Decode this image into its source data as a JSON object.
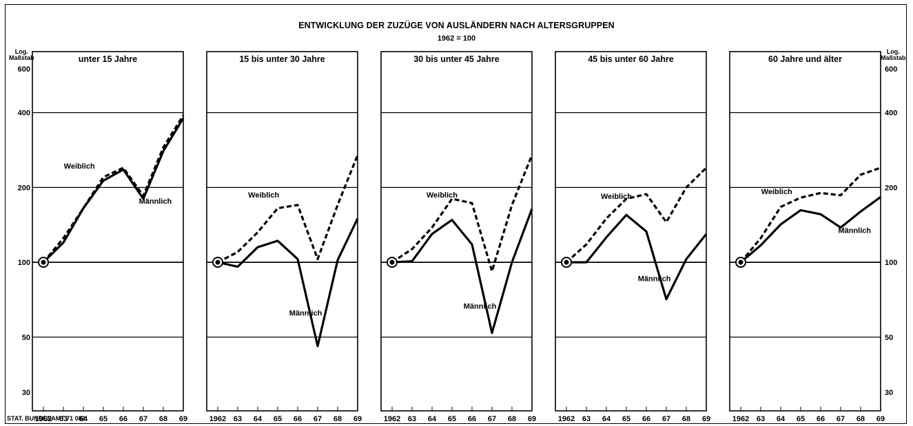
{
  "title": "ENTWICKLUNG DER ZUZÜGE VON AUSLÄNDERN NACH ALTERSGRUPPEN",
  "subtitle": "1962 = 100",
  "source": "STAT. BUNDESAMT 71 082",
  "scale_label_left": [
    "Log.",
    "Maßstab"
  ],
  "scale_label_right": [
    "Log.",
    "Maßstab"
  ],
  "chart_data": [
    {
      "type": "line",
      "title": "unter 15 Jahre",
      "x": [
        "1962",
        "63",
        "64",
        "65",
        "66",
        "67",
        "68",
        "69"
      ],
      "y_scale": "log",
      "ylim": [
        30,
        600
      ],
      "y_ticks": [
        30,
        50,
        100,
        200,
        400,
        600
      ],
      "series": [
        {
          "name": "Weiblich",
          "style": "dashed",
          "values": [
            100,
            125,
            165,
            220,
            240,
            185,
            290,
            390
          ],
          "label_at": {
            "x_index": 1.8,
            "value": 238
          }
        },
        {
          "name": "Männlich",
          "style": "solid",
          "values": [
            100,
            120,
            165,
            213,
            236,
            180,
            280,
            380
          ],
          "label_at": {
            "x_index": 5.6,
            "value": 172
          }
        }
      ]
    },
    {
      "type": "line",
      "title": "15 bis unter 30 Jahre",
      "x": [
        "1962",
        "63",
        "64",
        "65",
        "66",
        "67",
        "68",
        "69"
      ],
      "y_scale": "log",
      "ylim": [
        30,
        600
      ],
      "y_ticks": [
        30,
        50,
        100,
        200,
        400,
        600
      ],
      "series": [
        {
          "name": "Weiblich",
          "style": "dashed",
          "values": [
            100,
            110,
            132,
            165,
            170,
            103,
            170,
            270
          ],
          "label_at": {
            "x_index": 2.3,
            "value": 182
          }
        },
        {
          "name": "Männlich",
          "style": "solid",
          "values": [
            100,
            96,
            115,
            122,
            103,
            46,
            102,
            150
          ],
          "label_at": {
            "x_index": 4.4,
            "value": 61
          }
        }
      ]
    },
    {
      "type": "line",
      "title": "30 bis unter 45 Jahre",
      "x": [
        "1962",
        "63",
        "64",
        "65",
        "66",
        "67",
        "68",
        "69"
      ],
      "y_scale": "log",
      "ylim": [
        30,
        600
      ],
      "y_ticks": [
        30,
        50,
        100,
        200,
        400,
        600
      ],
      "series": [
        {
          "name": "Weiblich",
          "style": "dashed",
          "values": [
            100,
            113,
            138,
            180,
            173,
            92,
            170,
            270
          ],
          "label_at": {
            "x_index": 2.5,
            "value": 182
          }
        },
        {
          "name": "Männlich",
          "style": "solid",
          "values": [
            100,
            101,
            130,
            148,
            118,
            52,
            100,
            164
          ],
          "label_at": {
            "x_index": 4.4,
            "value": 65
          }
        }
      ]
    },
    {
      "type": "line",
      "title": "45 bis unter 60 Jahre",
      "x": [
        "1962",
        "63",
        "64",
        "65",
        "66",
        "67",
        "68",
        "69"
      ],
      "y_scale": "log",
      "ylim": [
        30,
        600
      ],
      "y_ticks": [
        30,
        50,
        100,
        200,
        400,
        600
      ],
      "series": [
        {
          "name": "Weiblich",
          "style": "dashed",
          "values": [
            100,
            118,
            150,
            180,
            188,
            145,
            200,
            240
          ],
          "label_at": {
            "x_index": 2.5,
            "value": 180
          }
        },
        {
          "name": "Männlich",
          "style": "solid",
          "values": [
            100,
            100,
            126,
            155,
            133,
            71,
            103,
            130
          ],
          "label_at": {
            "x_index": 4.4,
            "value": 84
          }
        }
      ]
    },
    {
      "type": "line",
      "title": "60 Jahre und älter",
      "x": [
        "1962",
        "63",
        "64",
        "65",
        "66",
        "67",
        "68",
        "69"
      ],
      "y_scale": "log",
      "ylim": [
        30,
        600
      ],
      "y_ticks": [
        30,
        50,
        100,
        200,
        400,
        600
      ],
      "series": [
        {
          "name": "Weiblich",
          "style": "dashed",
          "values": [
            100,
            125,
            167,
            182,
            190,
            186,
            225,
            240
          ],
          "label_at": {
            "x_index": 1.8,
            "value": 188
          }
        },
        {
          "name": "Männlich",
          "style": "solid",
          "values": [
            100,
            117,
            142,
            162,
            156,
            138,
            160,
            183
          ],
          "label_at": {
            "x_index": 5.7,
            "value": 131
          }
        }
      ]
    }
  ]
}
